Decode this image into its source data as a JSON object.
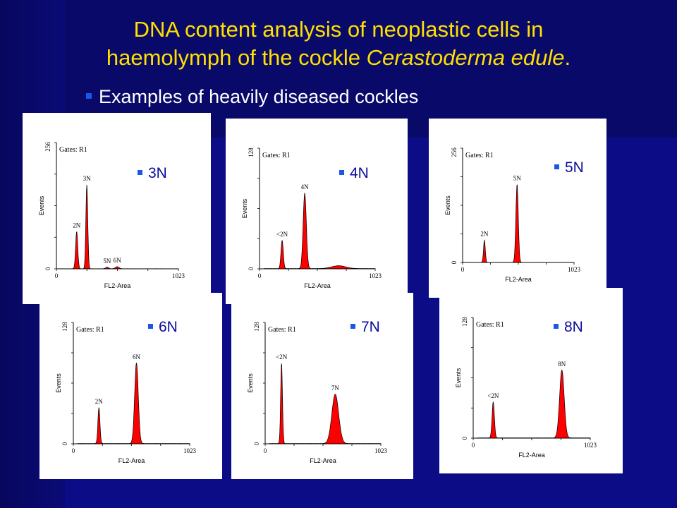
{
  "slide": {
    "title_line1": "DNA content analysis of neoplastic cells in",
    "title_line2_prefix": "haemolymph of the cockle ",
    "title_line2_italic": "Cerastoderma edule",
    "title_line2_suffix": ".",
    "subtitle": "Examples of heavily diseased cockles"
  },
  "colors": {
    "background": "#0b0b7a",
    "title": "#ffe000",
    "subtitle": "#ffffff",
    "bullet": "#1a56e8",
    "histogram_fill": "#ff0000",
    "peak_label": "#0b0ba0"
  },
  "chart_data": [
    {
      "type": "area",
      "panel_label": "3N",
      "gates": "Gates: R1",
      "xlabel": "FL2-Area",
      "ylabel": "Events",
      "x_ticks": [
        "0",
        "1023"
      ],
      "y_ticks": [
        "0",
        "256"
      ],
      "xlim": [
        0,
        1023
      ],
      "ylim": [
        0,
        256
      ],
      "peaks": [
        {
          "label": "2N",
          "x": 170,
          "y": 75,
          "width": 9
        },
        {
          "label": "3N",
          "x": 255,
          "y": 170,
          "width": 8
        },
        {
          "label": "5N",
          "x": 425,
          "y": 3,
          "width": 12
        },
        {
          "label": "6N",
          "x": 510,
          "y": 4,
          "width": 14
        }
      ]
    },
    {
      "type": "area",
      "panel_label": "4N",
      "gates": "Gates: R1",
      "xlabel": "FL2-Area",
      "ylabel": "Events",
      "x_ticks": [
        "0",
        "1023"
      ],
      "y_ticks": [
        "0",
        "128"
      ],
      "xlim": [
        0,
        1023
      ],
      "ylim": [
        0,
        128
      ],
      "peaks": [
        {
          "label": "<2N",
          "x": 200,
          "y": 30,
          "width": 10
        },
        {
          "label": "4N",
          "x": 400,
          "y": 80,
          "width": 14
        },
        {
          "label": "",
          "x": 700,
          "y": 3,
          "width": 60
        }
      ]
    },
    {
      "type": "area",
      "panel_label": "5N",
      "gates": "Gates: R1",
      "xlabel": "FL2-Area",
      "ylabel": "Events",
      "x_ticks": [
        "0",
        "1023"
      ],
      "y_ticks": [
        "0",
        "256"
      ],
      "xlim": [
        0,
        1023
      ],
      "ylim": [
        0,
        256
      ],
      "peaks": [
        {
          "label": "2N",
          "x": 200,
          "y": 50,
          "width": 8
        },
        {
          "label": "5N",
          "x": 500,
          "y": 175,
          "width": 11
        }
      ]
    },
    {
      "type": "area",
      "panel_label": "6N",
      "gates": "Gates: R1",
      "xlabel": "FL2-Area",
      "ylabel": "Events",
      "x_ticks": [
        "0",
        "1023"
      ],
      "y_ticks": [
        "0",
        "128"
      ],
      "xlim": [
        0,
        1023
      ],
      "ylim": [
        0,
        128
      ],
      "peaks": [
        {
          "label": "2N",
          "x": 225,
          "y": 38,
          "width": 9
        },
        {
          "label": "6N",
          "x": 555,
          "y": 85,
          "width": 16
        }
      ]
    },
    {
      "type": "area",
      "panel_label": "7N",
      "gates": "Gates: R1",
      "xlabel": "FL2-Area",
      "ylabel": "Events",
      "x_ticks": [
        "0",
        "1023"
      ],
      "y_ticks": [
        "0",
        "128"
      ],
      "xlim": [
        0,
        1023
      ],
      "ylim": [
        0,
        128
      ],
      "peaks": [
        {
          "label": "<2N",
          "x": 145,
          "y": 85,
          "width": 8
        },
        {
          "label": "7N",
          "x": 620,
          "y": 52,
          "width": 30
        }
      ]
    },
    {
      "type": "area",
      "panel_label": "8N",
      "gates": "Gates: R1",
      "xlabel": "FL2-Area",
      "ylabel": "Events",
      "x_ticks": [
        "0",
        "1023"
      ],
      "y_ticks": [
        "0",
        "128"
      ],
      "xlim": [
        0,
        1023
      ],
      "ylim": [
        0,
        128
      ],
      "peaks": [
        {
          "label": "<2N",
          "x": 175,
          "y": 38,
          "width": 10
        },
        {
          "label": "8N",
          "x": 775,
          "y": 72,
          "width": 20
        }
      ]
    }
  ]
}
